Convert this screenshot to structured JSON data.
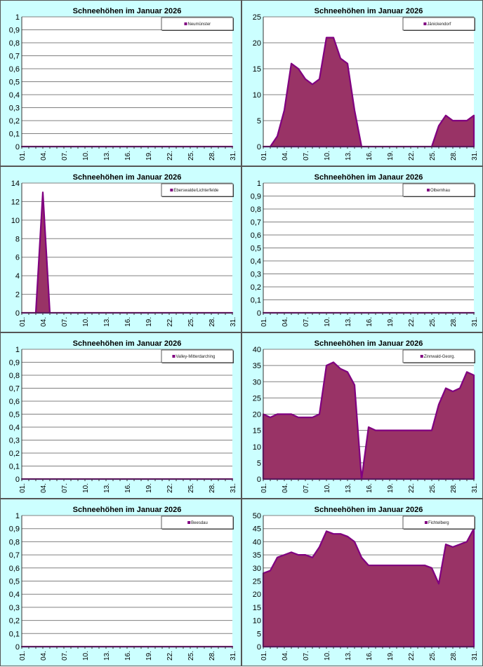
{
  "colors": {
    "panel_bg": "#ccffff",
    "plot_bg": "#ffffff",
    "area_fill": "#993366",
    "area_line": "#800080",
    "gridline": "#808080"
  },
  "chart_data": [
    {
      "type": "area",
      "title": "Schneehöhen im Januar 2026",
      "legend": [
        "Neumünster"
      ],
      "series": [
        {
          "name": "Neumünster",
          "values": [
            0,
            0,
            0,
            0,
            0,
            0,
            0,
            0,
            0,
            0,
            0,
            0,
            0,
            0,
            0,
            0,
            0,
            0,
            0,
            0,
            0,
            0,
            0,
            0,
            0,
            0,
            0,
            0,
            0,
            0,
            0
          ]
        }
      ],
      "x": [
        "01.",
        "02.",
        "03.",
        "04.",
        "05.",
        "06.",
        "07.",
        "08.",
        "09.",
        "10.",
        "11.",
        "12.",
        "13.",
        "14.",
        "15.",
        "16.",
        "17.",
        "18.",
        "19.",
        "20.",
        "21.",
        "22.",
        "23.",
        "24.",
        "25.",
        "26.",
        "27.",
        "28.",
        "29.",
        "30.",
        "31."
      ],
      "xtick_labels": [
        "01.",
        "04.",
        "07.",
        "10.",
        "13.",
        "16.",
        "19.",
        "22.",
        "25.",
        "28.",
        "31."
      ],
      "ylim": [
        0,
        1
      ],
      "yticks": [
        "0",
        "0,1",
        "0,2",
        "0,3",
        "0,4",
        "0,5",
        "0,6",
        "0,7",
        "0,8",
        "0,9",
        "1"
      ],
      "grid": true,
      "legend_position": "top-right"
    },
    {
      "type": "area",
      "title": "Schneehöhen im Januar 2026",
      "legend": [
        "Jänickendorf"
      ],
      "series": [
        {
          "name": "Jänickendorf",
          "values": [
            0,
            0,
            2,
            7,
            16,
            15,
            13,
            12,
            13,
            21,
            21,
            17,
            16,
            7,
            0,
            0,
            0,
            0,
            0,
            0,
            0,
            0,
            0,
            0,
            0,
            4,
            6,
            5,
            5,
            5,
            6
          ]
        }
      ],
      "x": [
        "01.",
        "02.",
        "03.",
        "04.",
        "05.",
        "06.",
        "07.",
        "08.",
        "09.",
        "10.",
        "11.",
        "12.",
        "13.",
        "14.",
        "15.",
        "16.",
        "17.",
        "18.",
        "19.",
        "20.",
        "21.",
        "22.",
        "23.",
        "24.",
        "25.",
        "26.",
        "27.",
        "28.",
        "29.",
        "30.",
        "31."
      ],
      "xtick_labels": [
        "01.",
        "04.",
        "07.",
        "10.",
        "13.",
        "16.",
        "19.",
        "22.",
        "25.",
        "28.",
        "31."
      ],
      "ylim": [
        0,
        25
      ],
      "yticks": [
        "0",
        "5",
        "10",
        "15",
        "20",
        "25"
      ],
      "grid": true,
      "legend_position": "top-right"
    },
    {
      "type": "area",
      "title": "Schneehöhen im Januar 2026",
      "legend": [
        "Eberswalde/Lichterfelde"
      ],
      "series": [
        {
          "name": "Eberswalde/Lichterfelde",
          "values": [
            0,
            0,
            0,
            13,
            0,
            0,
            0,
            0,
            0,
            0,
            0,
            0,
            0,
            0,
            0,
            0,
            0,
            0,
            0,
            0,
            0,
            0,
            0,
            0,
            0,
            0,
            0,
            0,
            0,
            0,
            0
          ]
        }
      ],
      "x": [
        "01.",
        "02.",
        "03.",
        "04.",
        "05.",
        "06.",
        "07.",
        "08.",
        "09.",
        "10.",
        "11.",
        "12.",
        "13.",
        "14.",
        "15.",
        "16.",
        "17.",
        "18.",
        "19.",
        "20.",
        "21.",
        "22.",
        "23.",
        "24.",
        "25.",
        "26.",
        "27.",
        "28.",
        "29.",
        "30.",
        "31."
      ],
      "xtick_labels": [
        "01.",
        "04.",
        "07.",
        "10.",
        "13.",
        "16.",
        "19.",
        "22.",
        "25.",
        "28.",
        "31."
      ],
      "ylim": [
        0,
        14
      ],
      "yticks": [
        "0",
        "2",
        "4",
        "6",
        "8",
        "10",
        "12",
        "14"
      ],
      "grid": true,
      "legend_position": "top-right"
    },
    {
      "type": "area",
      "title": "Schneehöhen im Janaur 2026",
      "legend": [
        "Olbernhau"
      ],
      "series": [
        {
          "name": "Olbernhau",
          "values": [
            0,
            0,
            0,
            0,
            0,
            0,
            0,
            0,
            0,
            0,
            0,
            0,
            0,
            0,
            0,
            0,
            0,
            0,
            0,
            0,
            0,
            0,
            0,
            0,
            0,
            0,
            0,
            0,
            0,
            0,
            0
          ]
        }
      ],
      "x": [
        "01.",
        "02.",
        "03.",
        "04.",
        "05.",
        "06.",
        "07.",
        "08.",
        "09.",
        "10.",
        "11.",
        "12.",
        "13.",
        "14.",
        "15.",
        "16.",
        "17.",
        "18.",
        "19.",
        "20.",
        "21.",
        "22.",
        "23.",
        "24.",
        "25.",
        "26.",
        "27.",
        "28.",
        "29.",
        "30.",
        "31."
      ],
      "xtick_labels": [
        "01.",
        "04.",
        "07.",
        "10.",
        "13.",
        "16.",
        "19.",
        "22.",
        "25.",
        "28.",
        "31."
      ],
      "ylim": [
        0,
        1
      ],
      "yticks": [
        "0",
        "0,1",
        "0,2",
        "0,3",
        "0,4",
        "0,5",
        "0,6",
        "0,7",
        "0,8",
        "0,9",
        "1"
      ],
      "grid": true,
      "legend_position": "top-right"
    },
    {
      "type": "area",
      "title": "Schneehöhen im Januar 2026",
      "legend": [
        "Valley-Mitterdarching"
      ],
      "series": [
        {
          "name": "Valley-Mitterdarching",
          "values": [
            0,
            0,
            0,
            0,
            0,
            0,
            0,
            0,
            0,
            0,
            0,
            0,
            0,
            0,
            0,
            0,
            0,
            0,
            0,
            0,
            0,
            0,
            0,
            0,
            0,
            0,
            0,
            0,
            0,
            0,
            0
          ]
        }
      ],
      "x": [
        "01.",
        "02.",
        "03.",
        "04.",
        "05.",
        "06.",
        "07.",
        "08.",
        "09.",
        "10.",
        "11.",
        "12.",
        "13.",
        "14.",
        "15.",
        "16.",
        "17.",
        "18.",
        "19.",
        "20.",
        "21.",
        "22.",
        "23.",
        "24.",
        "25.",
        "26.",
        "27.",
        "28.",
        "29.",
        "30.",
        "31."
      ],
      "xtick_labels": [
        "01.",
        "04.",
        "07.",
        "10.",
        "13.",
        "16.",
        "19.",
        "22.",
        "25.",
        "28.",
        "31."
      ],
      "ylim": [
        0,
        1
      ],
      "yticks": [
        "0",
        "0,1",
        "0,2",
        "0,3",
        "0,4",
        "0,5",
        "0,6",
        "0,7",
        "0,8",
        "0,9",
        "1"
      ],
      "grid": true,
      "legend_position": "top-right"
    },
    {
      "type": "area",
      "title": "Schneehöhen im Januar 2026",
      "legend": [
        "Zinnwald-Georg."
      ],
      "series": [
        {
          "name": "Zinnwald-Georg.",
          "values": [
            20,
            19,
            20,
            20,
            20,
            19,
            19,
            19,
            20,
            35,
            36,
            34,
            33,
            29,
            0,
            16,
            15,
            15,
            15,
            15,
            15,
            15,
            15,
            15,
            15,
            23,
            28,
            27,
            28,
            33,
            32
          ]
        }
      ],
      "x": [
        "01.",
        "02.",
        "03.",
        "04.",
        "05.",
        "06.",
        "07.",
        "08.",
        "09.",
        "10.",
        "11.",
        "12.",
        "13.",
        "14.",
        "15.",
        "16.",
        "17.",
        "18.",
        "19.",
        "20.",
        "21.",
        "22.",
        "23.",
        "24.",
        "25.",
        "26.",
        "27.",
        "28.",
        "29.",
        "30.",
        "31."
      ],
      "xtick_labels": [
        "01.",
        "04.",
        "07.",
        "10.",
        "13.",
        "16.",
        "19.",
        "22.",
        "25.",
        "28.",
        "31."
      ],
      "ylim": [
        0,
        40
      ],
      "yticks": [
        "0",
        "5",
        "10",
        "15",
        "20",
        "25",
        "30",
        "35",
        "40"
      ],
      "grid": true,
      "legend_position": "top-right"
    },
    {
      "type": "area",
      "title": "Schneehöhen im Januar 2026",
      "legend": [
        "Beesdau"
      ],
      "series": [
        {
          "name": "Beesdau",
          "values": [
            0,
            0,
            0,
            0,
            0,
            0,
            0,
            0,
            0,
            0,
            0,
            0,
            0,
            0,
            0,
            0,
            0,
            0,
            0,
            0,
            0,
            0,
            0,
            0,
            0,
            0,
            0,
            0,
            0,
            0,
            0
          ]
        }
      ],
      "x": [
        "01.",
        "02.",
        "03.",
        "04.",
        "05.",
        "06.",
        "07.",
        "08.",
        "09.",
        "10.",
        "11.",
        "12.",
        "13.",
        "14.",
        "15.",
        "16.",
        "17.",
        "18.",
        "19.",
        "20.",
        "21.",
        "22.",
        "23.",
        "24.",
        "25.",
        "26.",
        "27.",
        "28.",
        "29.",
        "30.",
        "31."
      ],
      "xtick_labels": [
        "01.",
        "04.",
        "07.",
        "10.",
        "13.",
        "16.",
        "19.",
        "22.",
        "25.",
        "28.",
        "31."
      ],
      "ylim": [
        0,
        1
      ],
      "yticks": [
        "0",
        "0,1",
        "0,2",
        "0,3",
        "0,4",
        "0,5",
        "0,6",
        "0,7",
        "0,8",
        "0,9",
        "1"
      ],
      "grid": true,
      "legend_position": "top-right"
    },
    {
      "type": "area",
      "title": "Schneehöhen im Januar 2026",
      "legend": [
        "Fichtelberg"
      ],
      "series": [
        {
          "name": "Fichtelberg",
          "values": [
            28,
            29,
            34,
            35,
            36,
            35,
            35,
            34,
            38,
            44,
            43,
            43,
            42,
            40,
            34,
            31,
            31,
            31,
            31,
            31,
            31,
            31,
            31,
            31,
            30,
            24,
            39,
            38,
            39,
            40,
            45
          ]
        }
      ],
      "x": [
        "01.",
        "02.",
        "03.",
        "04.",
        "05.",
        "06.",
        "07.",
        "08.",
        "09.",
        "10.",
        "11.",
        "12.",
        "13.",
        "14.",
        "15.",
        "16.",
        "17.",
        "18.",
        "19.",
        "20.",
        "21.",
        "22.",
        "23.",
        "24.",
        "25.",
        "26.",
        "27.",
        "28.",
        "29.",
        "30.",
        "31."
      ],
      "xtick_labels": [
        "01.",
        "04.",
        "07.",
        "10.",
        "13.",
        "16.",
        "19.",
        "22.",
        "25.",
        "28.",
        "31."
      ],
      "ylim": [
        0,
        50
      ],
      "yticks": [
        "0",
        "5",
        "10",
        "15",
        "20",
        "25",
        "30",
        "35",
        "40",
        "45",
        "50"
      ],
      "grid": true,
      "legend_position": "top-right"
    }
  ]
}
